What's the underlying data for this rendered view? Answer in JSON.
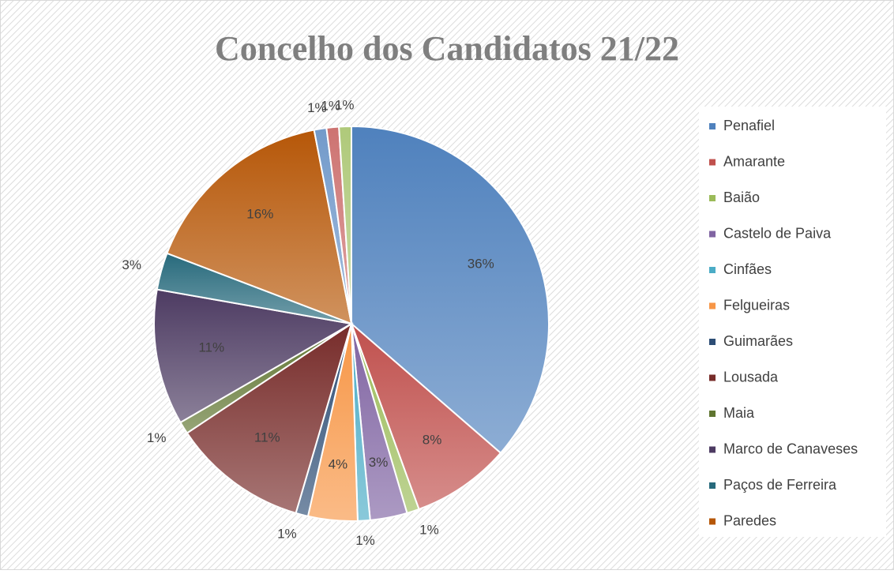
{
  "chart_data": {
    "type": "pie",
    "title": "Concelho dos Candidatos 21/22",
    "categories": [
      "Penafiel",
      "Amarante",
      "Baião",
      "Castelo de Paiva",
      "Cinfães",
      "Felgueiras",
      "Guimarães",
      "Lousada",
      "Maia",
      "Marco de Canaveses",
      "Paços de Ferreira",
      "Paredes",
      null,
      null,
      null
    ],
    "values": [
      36,
      8,
      1,
      3,
      1,
      4,
      1,
      11,
      1,
      11,
      3,
      16,
      1,
      1,
      1
    ],
    "value_labels": [
      "36%",
      "8%",
      "1%",
      "3%",
      "1%",
      "4%",
      "1%",
      "11%",
      "1%",
      "11%",
      "3%",
      "16%",
      "1%",
      "1%",
      "1%"
    ],
    "colors": [
      "#4f81bd",
      "#c0504d",
      "#9bbb59",
      "#8064a2",
      "#4bacc6",
      "#f79646",
      "#2c4d75",
      "#772c2a",
      "#5f7530",
      "#4d3b62",
      "#276a7c",
      "#b65708",
      "#729aca",
      "#cd7371",
      "#afc97a"
    ],
    "legend": "right"
  }
}
